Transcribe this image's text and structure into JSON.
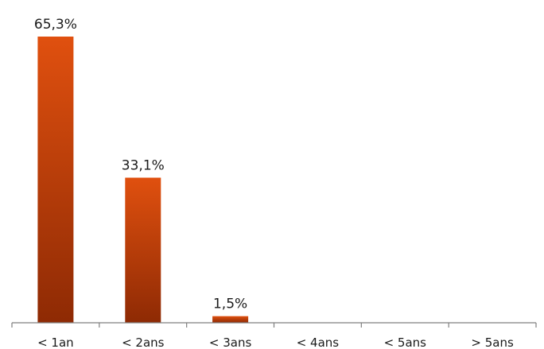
{
  "chart_data": {
    "type": "bar",
    "categories": [
      "< 1an",
      "< 2ans",
      "< 3ans",
      "< 4ans",
      "< 5ans",
      "> 5ans"
    ],
    "values": [
      65.3,
      33.1,
      1.5,
      0,
      0,
      0
    ],
    "data_labels": [
      "65,3%",
      "33,1%",
      "1,5%",
      "",
      "",
      ""
    ],
    "title": "",
    "xlabel": "",
    "ylabel": "",
    "ylim": [
      0,
      65.3
    ],
    "grid": false,
    "legend": "none",
    "colors": {
      "bar_top": "#E0500F",
      "bar_bottom": "#8E2A04",
      "axis": "#7f7f7f",
      "text": "#1a1a1a"
    }
  }
}
